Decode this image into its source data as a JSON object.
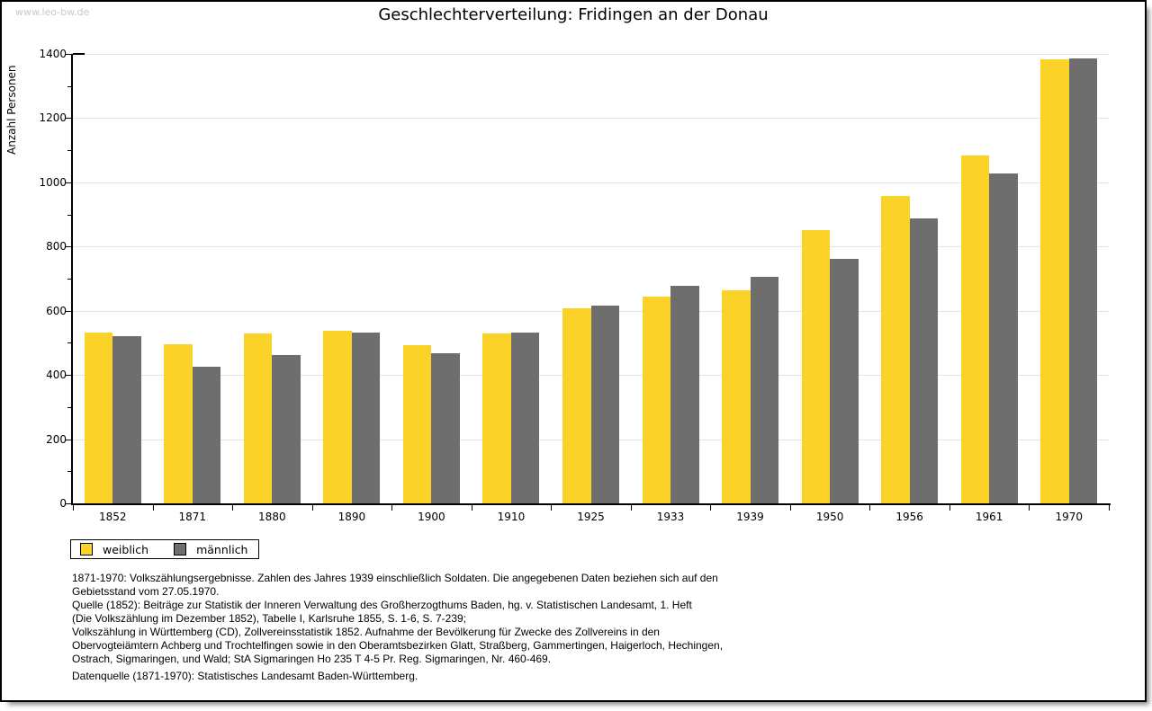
{
  "page": {
    "watermark": "www.leo-bw.de",
    "title": "Geschlechterverteilung: Fridingen an der Donau"
  },
  "chart_data": {
    "type": "bar",
    "title": "Geschlechterverteilung: Fridingen an der Donau",
    "xlabel": "",
    "ylabel": "Anzahl Personen",
    "ylim": [
      0,
      1400
    ],
    "ytick_step": 200,
    "yminor_step": 100,
    "grid": true,
    "legend_position": "below-left",
    "categories": [
      "1852",
      "1871",
      "1880",
      "1890",
      "1900",
      "1910",
      "1925",
      "1933",
      "1939",
      "1950",
      "1956",
      "1961",
      "1970"
    ],
    "series": [
      {
        "name": "weiblich",
        "color": "#FBD227",
        "values": [
          533,
          496,
          530,
          538,
          493,
          530,
          607,
          645,
          665,
          852,
          957,
          1084,
          1383
        ]
      },
      {
        "name": "männlich",
        "color": "#6E6E6E",
        "values": [
          522,
          427,
          462,
          533,
          468,
          533,
          616,
          677,
          707,
          761,
          889,
          1028,
          1386
        ]
      }
    ],
    "colors": {
      "grid": "#E3E3E3",
      "axis": "#000000"
    }
  },
  "footnotes": {
    "lines": [
      "1871-1970: Volkszählungsergebnisse. Zahlen des Jahres 1939 einschließlich Soldaten. Die angegebenen Daten beziehen sich auf den",
      "Gebietsstand vom 27.05.1970.",
      "Quelle (1852): Beiträge zur Statistik der Inneren Verwaltung des Großherzogthums Baden, hg. v. Statistischen Landesamt, 1. Heft",
      "(Die Volkszählung im Dezember 1852), Tabelle I, Karlsruhe 1855, S. 1-6, S. 7-239;",
      "Volkszählung in Württemberg (CD), Zollvereinsstatistik 1852. Aufnahme der Bevölkerung für Zwecke des Zollvereins in den",
      "Obervogteiämtern Achberg und Trochtelfingen sowie in den Oberamtsbezirken Glatt, Straßberg, Gammertingen, Haigerloch, Hechingen,",
      "Ostrach, Sigmaringen, und Wald; StA Sigmaringen Ho 235 T 4-5 Pr. Reg. Sigmaringen, Nr. 460-469."
    ],
    "datasource": "Datenquelle (1871-1970): Statistisches Landesamt Baden-Württemberg."
  }
}
